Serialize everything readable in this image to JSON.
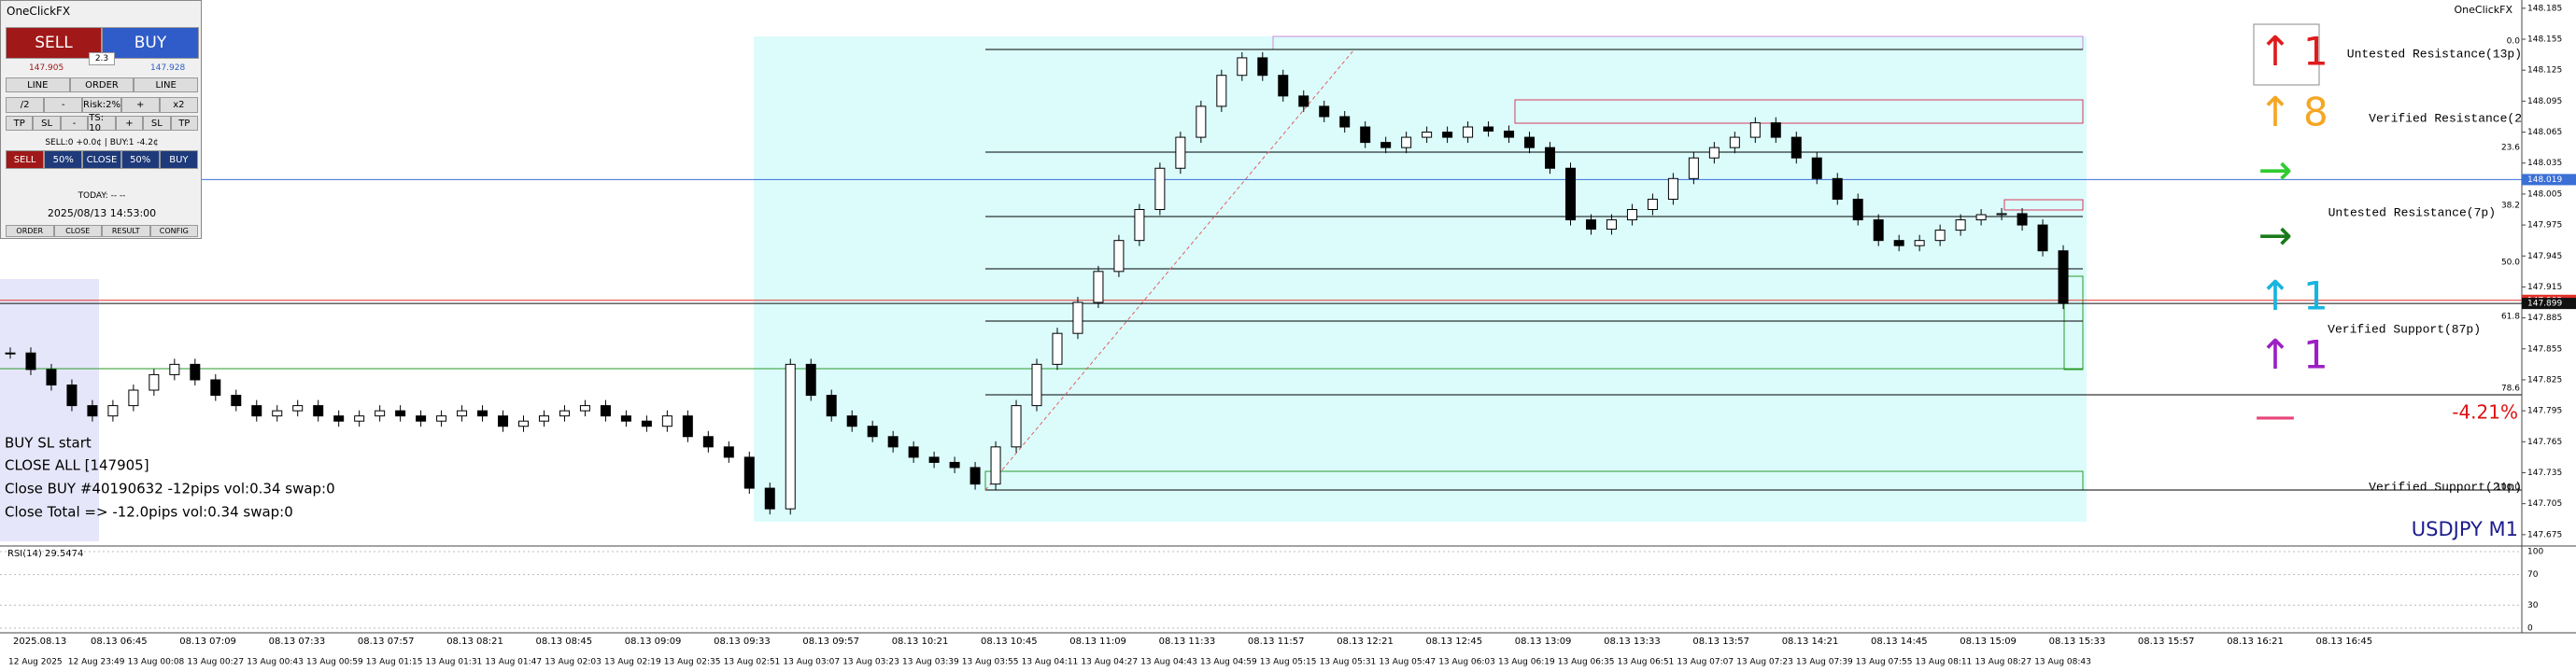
{
  "panel": {
    "title": "OneClickFX",
    "sell": "SELL",
    "buy": "BUY",
    "bid": "147.905",
    "spread": "2.3",
    "ask": "147.928",
    "row1": [
      "LINE",
      "ORDER",
      "LINE"
    ],
    "row2": [
      "/2",
      "-",
      "Risk:2%",
      "+",
      "x2"
    ],
    "row3": [
      "TP",
      "SL",
      "-",
      "TS: 10",
      "+",
      "SL",
      "TP"
    ],
    "status": "SELL:0 +0.0¢ | BUY:1 -4.2¢",
    "row4": [
      "SELL",
      "50%",
      "CLOSE",
      "50%",
      "BUY"
    ],
    "today": "TODAY: -- --",
    "clock": "2025/08/13  14:53:00",
    "row5": [
      "ORDER",
      "CLOSE",
      "RESULT",
      "CONFIG"
    ]
  },
  "chart": {
    "brand": "OneClickFX",
    "symbol": "USDJPY M1",
    "pct": "-4.21%",
    "rsi_label": "RSI(14) 29.5474",
    "ylim": [
      147.664,
      148.193
    ],
    "price_ticks": [
      148.185,
      148.155,
      148.125,
      148.095,
      148.065,
      148.035,
      148.005,
      147.975,
      147.945,
      147.915,
      147.885,
      147.855,
      147.825,
      147.795,
      147.765,
      147.735,
      147.705,
      147.675
    ],
    "price_markers": [
      {
        "value": 148.019,
        "color": "#3b6fd6"
      },
      {
        "value": 147.902,
        "color": "#e0312b"
      },
      {
        "value": 147.899,
        "color": "#111111"
      }
    ],
    "fib_levels": [
      "0.0",
      "23.6",
      "38.2",
      "50.0",
      "61.8",
      "78.6",
      "100.0"
    ],
    "zones": [
      "Untested Resistance(13p)",
      "Verified Resistance(2",
      "Untested Resistance(7p)",
      "Verified Support(87p)",
      "Verified Support(21p)"
    ],
    "signals": [
      {
        "arrow": "↑",
        "count": 1,
        "color": "#e01b1b"
      },
      {
        "arrow": "↑",
        "count": 8,
        "color": "#f5a623"
      },
      {
        "arrow": "→",
        "color": "#2ecc2e"
      },
      {
        "arrow": "→",
        "color": "#1a7a1a"
      },
      {
        "arrow": "↑",
        "count": 1,
        "color": "#18b4e0"
      },
      {
        "arrow": "↑",
        "count": 1,
        "color": "#9b1fc4"
      },
      {
        "arrow": "—",
        "color": "#e8457a"
      }
    ],
    "log": [
      "BUY SL start",
      "CLOSE ALL [147905]",
      "Close BUY #40190632 -12pips vol:0.34 swap:0",
      "Close Total => -12.0pips vol:0.34 swap:0"
    ],
    "rsi_lim": [
      0,
      100
    ],
    "rsi_ticks": [
      100,
      70,
      30,
      0
    ],
    "time_top": [
      "2025.08.13",
      "08.13 06:45",
      "08.13 07:09",
      "08.13 07:33",
      "08.13 07:57",
      "08.13 08:21",
      "08.13 08:45",
      "08.13 09:09",
      "08.13 09:33",
      "08.13 09:57",
      "08.13 10:21",
      "08.13 10:45",
      "08.13 11:09",
      "08.13 11:33",
      "08.13 11:57",
      "08.13 12:21",
      "08.13 12:45",
      "08.13 13:09",
      "08.13 13:33",
      "08.13 13:57",
      "08.13 14:21",
      "08.13 14:45",
      "08.13 15:09",
      "08.13 15:33",
      "08.13 15:57",
      "08.13 16:21",
      "08.13 16:45"
    ],
    "time_bottom": [
      "12 Aug 2025",
      "12 Aug 23:49",
      "13 Aug 00:08",
      "13 Aug 00:27",
      "13 Aug 00:43",
      "13 Aug 00:59",
      "13 Aug 01:15",
      "13 Aug 01:31",
      "13 Aug 01:47",
      "13 Aug 02:03",
      "13 Aug 02:19",
      "13 Aug 02:35",
      "13 Aug 02:51",
      "13 Aug 03:07",
      "13 Aug 03:23",
      "13 Aug 03:39",
      "13 Aug 03:55",
      "13 Aug 04:11",
      "13 Aug 04:27",
      "13 Aug 04:43",
      "13 Aug 04:59",
      "13 Aug 05:15",
      "13 Aug 05:31",
      "13 Aug 05:47",
      "13 Aug 06:03",
      "13 Aug 06:19",
      "13 Aug 06:35",
      "13 Aug 06:51",
      "13 Aug 07:07",
      "13 Aug 07:23",
      "13 Aug 07:39",
      "13 Aug 07:55",
      "13 Aug 08:11",
      "13 Aug 08:27",
      "13 Aug 08:43"
    ],
    "closes": [
      147.851,
      147.835,
      147.82,
      147.8,
      147.79,
      147.8,
      147.815,
      147.83,
      147.84,
      147.825,
      147.81,
      147.8,
      147.79,
      147.795,
      147.8,
      147.79,
      147.785,
      147.79,
      147.795,
      147.79,
      147.785,
      147.79,
      147.795,
      147.79,
      147.78,
      147.785,
      147.79,
      147.795,
      147.8,
      147.79,
      147.785,
      147.78,
      147.79,
      147.77,
      147.76,
      147.75,
      147.72,
      147.7,
      147.84,
      147.81,
      147.79,
      147.78,
      147.77,
      147.76,
      147.75,
      147.745,
      147.74,
      147.724,
      147.76,
      147.8,
      147.84,
      147.87,
      147.9,
      147.93,
      147.96,
      147.99,
      148.03,
      148.06,
      148.09,
      148.12,
      148.137,
      148.12,
      148.1,
      148.09,
      148.08,
      148.07,
      148.055,
      148.05,
      148.06,
      148.065,
      148.06,
      148.07,
      148.066,
      148.06,
      148.05,
      148.03,
      147.98,
      147.971,
      147.98,
      147.99,
      148.0,
      148.02,
      148.04,
      148.05,
      148.06,
      148.074,
      148.06,
      148.04,
      148.02,
      148.0,
      147.98,
      147.96,
      147.955,
      147.96,
      147.97,
      147.98,
      147.985,
      147.986,
      147.975,
      147.95,
      147.899
    ]
  }
}
